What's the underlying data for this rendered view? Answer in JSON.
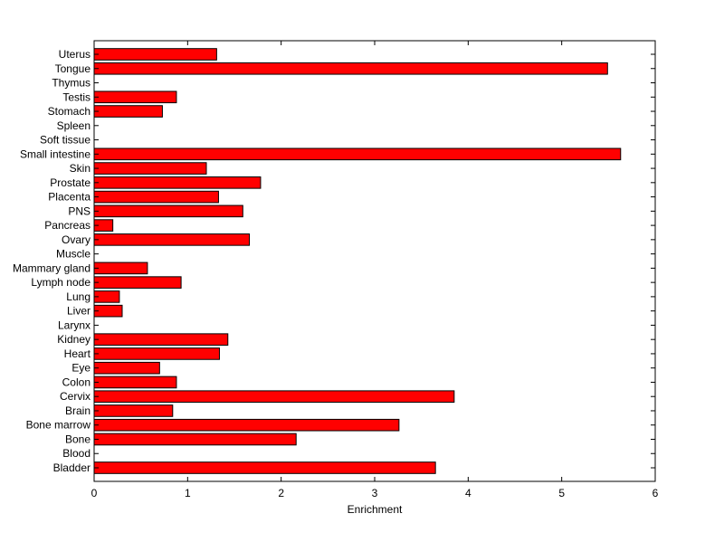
{
  "chart_data": {
    "type": "bar",
    "orientation": "horizontal",
    "title": "",
    "xlabel": "Enrichment",
    "ylabel": "",
    "xlim": [
      0,
      6
    ],
    "xticks": [
      0,
      1,
      2,
      3,
      4,
      5,
      6
    ],
    "grid": false,
    "bar_color": "#ff0000",
    "bar_edge_color": "#000000",
    "categories": [
      "Bladder",
      "Blood",
      "Bone",
      "Bone marrow",
      "Brain",
      "Cervix",
      "Colon",
      "Eye",
      "Heart",
      "Kidney",
      "Larynx",
      "Liver",
      "Lung",
      "Lymph node",
      "Mammary gland",
      "Muscle",
      "Ovary",
      "Pancreas",
      "PNS",
      "Placenta",
      "Prostate",
      "Skin",
      "Small intestine",
      "Soft tissue",
      "Spleen",
      "Stomach",
      "Testis",
      "Thymus",
      "Tongue",
      "Uterus"
    ],
    "values": [
      3.65,
      0,
      2.16,
      3.26,
      0.84,
      3.85,
      0.88,
      0.7,
      1.34,
      1.43,
      0,
      0.3,
      0.27,
      0.93,
      0.57,
      0,
      1.66,
      0.2,
      1.59,
      1.33,
      1.78,
      1.2,
      5.63,
      0,
      0,
      0.73,
      0.88,
      0,
      5.49,
      1.31
    ]
  }
}
